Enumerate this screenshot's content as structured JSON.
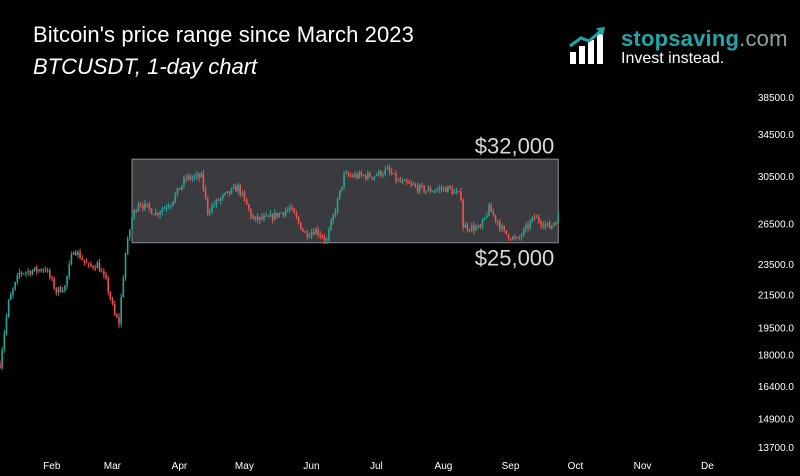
{
  "header": {
    "title": "Bitcoin's price range since March 2023",
    "subtitle": "BTCUSDT, 1-day chart"
  },
  "logo": {
    "brand": "stopsaving",
    "brand_suffix": ".com",
    "tagline": "Invest instead.",
    "icon": "bar-chart-growth-icon",
    "brand_color": "#1fa6a8"
  },
  "chart_data": {
    "type": "candlestick",
    "title": "Bitcoin's price range since March 2023",
    "subtitle": "BTCUSDT, 1-day chart",
    "x_ticks": [
      "Feb",
      "Mar",
      "Apr",
      "May",
      "Jun",
      "Jul",
      "Aug",
      "Sep",
      "Oct",
      "Nov",
      "De"
    ],
    "y_ticks": [
      "38500.0",
      "34500.0",
      "30500.0",
      "26500.0",
      "23500.0",
      "21500.0",
      "19500.0",
      "18000.0",
      "16400.0",
      "14900.0",
      "13700.0"
    ],
    "y_scale": "log",
    "date_range": [
      "2023-01-15",
      "2023-09-30"
    ],
    "range_box": {
      "upper": 32000,
      "lower": 25000,
      "upper_label": "$32,000",
      "lower_label": "$25,000",
      "start": "2023-03-17",
      "end": "2023-09-30"
    },
    "anchors": [
      [
        "2023-01-15",
        17500
      ],
      [
        "2023-01-19",
        21000
      ],
      [
        "2023-01-24",
        22900
      ],
      [
        "2023-02-05",
        23200
      ],
      [
        "2023-02-10",
        21700
      ],
      [
        "2023-02-14",
        22000
      ],
      [
        "2023-02-18",
        24600
      ],
      [
        "2023-02-25",
        23300
      ],
      [
        "2023-03-01",
        23500
      ],
      [
        "2023-03-05",
        22300
      ],
      [
        "2023-03-09",
        20200
      ],
      [
        "2023-03-11",
        19800
      ],
      [
        "2023-03-14",
        24200
      ],
      [
        "2023-03-17",
        27000
      ],
      [
        "2023-03-20",
        28200
      ],
      [
        "2023-03-28",
        27300
      ],
      [
        "2023-04-04",
        28200
      ],
      [
        "2023-04-11",
        30300
      ],
      [
        "2023-04-18",
        30400
      ],
      [
        "2023-04-21",
        27500
      ],
      [
        "2023-04-26",
        28400
      ],
      [
        "2023-05-05",
        29500
      ],
      [
        "2023-05-12",
        26800
      ],
      [
        "2023-05-19",
        26900
      ],
      [
        "2023-05-29",
        27700
      ],
      [
        "2023-06-05",
        25700
      ],
      [
        "2023-06-10",
        26000
      ],
      [
        "2023-06-15",
        25200
      ],
      [
        "2023-06-20",
        28300
      ],
      [
        "2023-06-23",
        30500
      ],
      [
        "2023-06-30",
        30500
      ],
      [
        "2023-07-06",
        30500
      ],
      [
        "2023-07-13",
        31000
      ],
      [
        "2023-07-18",
        30000
      ],
      [
        "2023-07-31",
        29200
      ],
      [
        "2023-08-10",
        29400
      ],
      [
        "2023-08-16",
        28700
      ],
      [
        "2023-08-17",
        26300
      ],
      [
        "2023-08-25",
        26100
      ],
      [
        "2023-08-29",
        27700
      ],
      [
        "2023-09-05",
        25800
      ],
      [
        "2023-09-11",
        25200
      ],
      [
        "2023-09-19",
        27000
      ],
      [
        "2023-09-26",
        26200
      ],
      [
        "2023-09-30",
        27000
      ]
    ]
  },
  "colors": {
    "background": "#000000",
    "candle_up": "#26a69a",
    "candle_down": "#ef5350",
    "range_box": "#3a3b3e",
    "range_border": "#8c8c8c",
    "axis_text": "#ffffff"
  }
}
